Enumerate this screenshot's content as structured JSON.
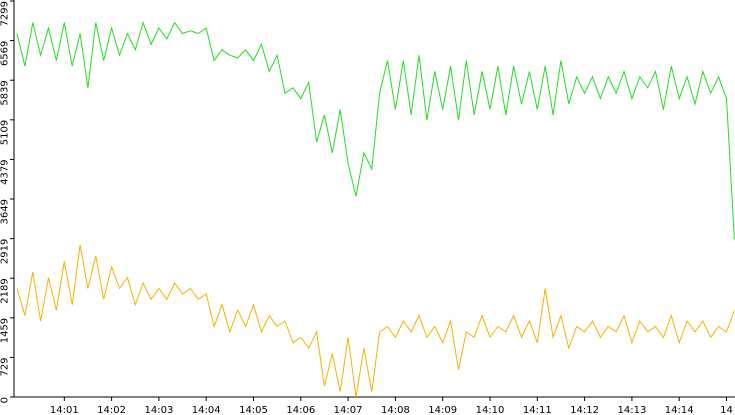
{
  "chart_data": {
    "type": "line",
    "categories": [
      null,
      null,
      null,
      null,
      null,
      null,
      "14:01",
      null,
      null,
      null,
      null,
      null,
      "14:02",
      null,
      null,
      null,
      null,
      null,
      "14:03",
      null,
      null,
      null,
      null,
      null,
      "14:04",
      null,
      null,
      null,
      null,
      null,
      "14:05",
      null,
      null,
      null,
      null,
      null,
      "14:06",
      null,
      null,
      null,
      null,
      null,
      "14:07",
      null,
      null,
      null,
      null,
      null,
      "14:08",
      null,
      null,
      null,
      null,
      null,
      "14:09",
      null,
      null,
      null,
      null,
      null,
      "14:10",
      null,
      null,
      null,
      null,
      null,
      "14:11",
      null,
      null,
      null,
      null,
      null,
      "14:12",
      null,
      null,
      null,
      null,
      null,
      "14:13",
      null,
      null,
      null,
      null,
      null,
      "14:14",
      null,
      null,
      null,
      null,
      null,
      "14",
      null
    ],
    "series": [
      {
        "name": "green",
        "color": "#22dd22",
        "values": [
          6700,
          6100,
          6900,
          6300,
          6800,
          6200,
          6900,
          6100,
          6700,
          5700,
          6900,
          6200,
          6800,
          6300,
          6700,
          6400,
          6900,
          6500,
          6800,
          6600,
          6900,
          6700,
          6750,
          6700,
          6800,
          6200,
          6400,
          6300,
          6250,
          6400,
          6200,
          6500,
          6000,
          6300,
          5600,
          5700,
          5500,
          5800,
          4700,
          5200,
          4500,
          5300,
          4300,
          3700,
          4500,
          4200,
          5600,
          6200,
          5300,
          6200,
          5200,
          6300,
          5100,
          6000,
          5300,
          6100,
          5100,
          6200,
          5200,
          6000,
          5300,
          6100,
          5200,
          6100,
          5400,
          6000,
          5300,
          6100,
          5200,
          6200,
          5400,
          5900,
          5600,
          5900,
          5500,
          5900,
          5600,
          6000,
          5500,
          5900,
          5700,
          6000,
          5300,
          6100,
          5500,
          5900,
          5400,
          6000,
          5600,
          5900,
          5500,
          2900
        ]
      },
      {
        "name": "yellow",
        "color": "#f0b400",
        "values": [
          2000,
          1500,
          2300,
          1400,
          2200,
          1600,
          2500,
          1700,
          2800,
          2000,
          2600,
          1800,
          2400,
          2000,
          2200,
          1700,
          2100,
          1800,
          2000,
          1800,
          2100,
          1900,
          2000,
          1800,
          1900,
          1300,
          1700,
          1200,
          1600,
          1300,
          1700,
          1200,
          1500,
          1300,
          1400,
          1000,
          1100,
          900,
          1200,
          200,
          800,
          100,
          1100,
          0,
          900,
          100,
          1200,
          1300,
          1100,
          1400,
          1200,
          1500,
          1100,
          1300,
          1000,
          1400,
          500,
          1200,
          1100,
          1500,
          1100,
          1300,
          1200,
          1500,
          1100,
          1400,
          1000,
          2000,
          1100,
          1500,
          900,
          1300,
          1200,
          1400,
          1100,
          1300,
          1200,
          1500,
          1000,
          1400,
          1200,
          1300,
          1100,
          1500,
          1000,
          1400,
          1200,
          1400,
          1100,
          1300,
          1200,
          1600
        ]
      }
    ],
    "ylim": [
      0,
      7299
    ],
    "yticks": [
      0,
      729,
      1459,
      2189,
      2919,
      3649,
      4379,
      5109,
      5839,
      6569,
      7299
    ]
  }
}
